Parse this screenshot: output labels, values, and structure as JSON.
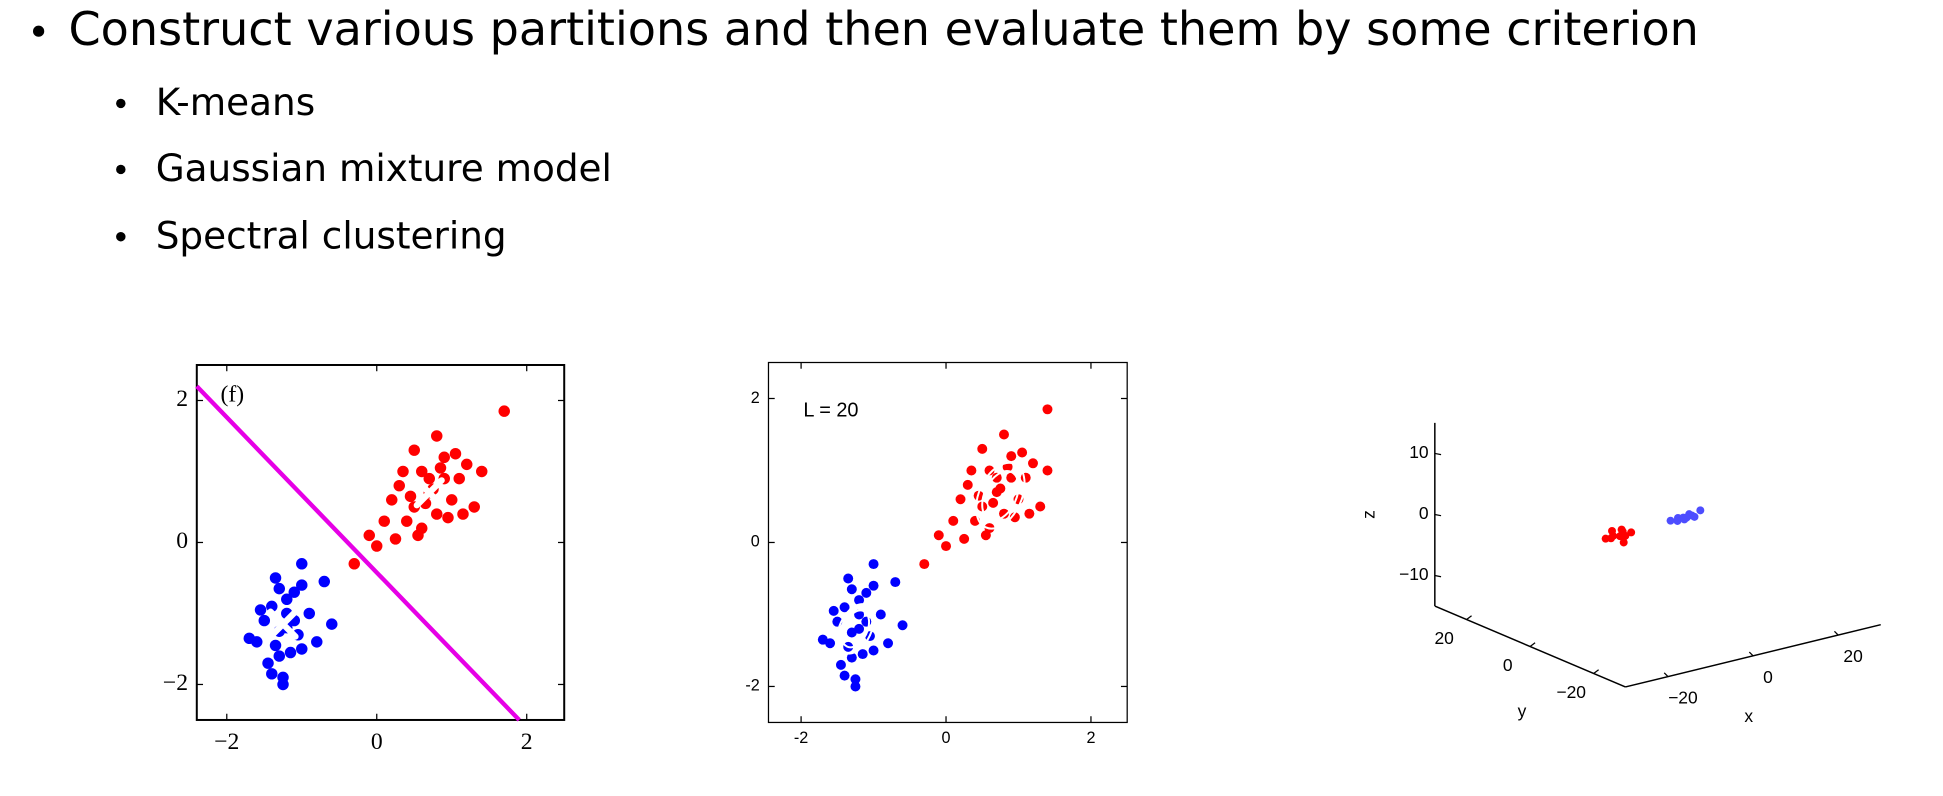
{
  "slide": {
    "bullet": "Construct various partitions and then evaluate them by some criterion",
    "sub_bullets": [
      "K-means",
      "Gaussian mixture model",
      "Spectral clustering"
    ]
  },
  "chart_data": [
    {
      "type": "scatter",
      "annotation": "(f)",
      "xlim": [
        -2.4,
        2.5
      ],
      "ylim": [
        -2.5,
        2.5
      ],
      "xticks": [
        {
          "value": -2,
          "label": "−2"
        },
        0,
        2
      ],
      "yticks": [
        {
          "value": -2,
          "label": "−2"
        },
        0,
        2
      ],
      "series": [
        {
          "color": "#ff0000",
          "x": [
            0.7,
            0.9,
            0.5,
            1.0,
            0.6,
            0.8,
            0.3,
            1.2,
            0.4,
            0.9,
            1.1,
            0.2,
            0.6,
            0.75,
            1.3,
            0.5,
            0.95,
            0.35,
            0.85,
            0.65,
            1.05,
            0.1,
            0.45,
            0.55,
            1.4,
            -0.1,
            0.8,
            1.15,
            0.25,
            0.7,
            -0.3,
            0.0,
            1.7
          ],
          "values": [
            0.7,
            0.9,
            0.5,
            0.6,
            1.0,
            0.4,
            0.8,
            1.1,
            0.3,
            1.2,
            0.9,
            0.6,
            0.2,
            0.75,
            0.5,
            1.3,
            0.35,
            1.0,
            1.05,
            0.55,
            1.25,
            0.3,
            0.65,
            0.1,
            1.0,
            0.1,
            1.5,
            0.4,
            0.05,
            0.9,
            -0.3,
            -0.05,
            1.85
          ]
        },
        {
          "color": "#0000ff",
          "x": [
            -1.2,
            -1.4,
            -1.0,
            -1.3,
            -1.5,
            -1.1,
            -1.25,
            -0.9,
            -1.6,
            -1.35,
            -1.05,
            -1.45,
            -1.2,
            -1.15,
            -1.3,
            -1.0,
            -1.55,
            -1.4,
            -0.8,
            -1.25,
            -1.1,
            -1.35,
            -0.6,
            -1.7,
            -1.0,
            -1.3,
            -0.7,
            -1.2
          ],
          "values": [
            -1.2,
            -0.9,
            -1.5,
            -1.6,
            -1.1,
            -0.7,
            -1.9,
            -1.0,
            -1.4,
            -0.5,
            -1.3,
            -1.7,
            -0.8,
            -1.55,
            -1.25,
            -0.6,
            -0.95,
            -1.85,
            -1.4,
            -2.0,
            -1.1,
            -1.45,
            -1.15,
            -1.35,
            -0.3,
            -0.65,
            -0.55,
            -1.0
          ]
        }
      ],
      "boundary": {
        "color": "#e600e6",
        "x": [
          -2.4,
          1.9
        ],
        "values": [
          2.2,
          -2.5
        ]
      },
      "centers": {
        "x": [
          0.7,
          -1.25
        ],
        "values": [
          0.7,
          -1.15
        ]
      }
    },
    {
      "type": "scatter",
      "annotation": "L = 20",
      "xlim": [
        -2.45,
        2.5
      ],
      "ylim": [
        -2.5,
        2.5
      ],
      "xticks": [
        -2,
        0,
        2
      ],
      "yticks": [
        -2,
        0,
        2
      ],
      "series": [
        {
          "color": "#ff0000",
          "x": [
            0.7,
            0.9,
            0.5,
            1.0,
            0.6,
            0.8,
            0.3,
            1.2,
            0.4,
            0.9,
            1.1,
            0.2,
            0.6,
            0.75,
            1.3,
            0.5,
            0.95,
            0.35,
            0.85,
            0.65,
            1.05,
            0.1,
            0.45,
            0.55,
            1.4,
            -0.1,
            0.8,
            1.15,
            0.25,
            0.7,
            -0.3,
            0.0,
            1.4
          ],
          "values": [
            0.7,
            0.9,
            0.5,
            0.6,
            1.0,
            0.4,
            0.8,
            1.1,
            0.3,
            1.2,
            0.9,
            0.6,
            0.2,
            0.75,
            0.5,
            1.3,
            0.35,
            1.0,
            1.05,
            0.55,
            1.25,
            0.3,
            0.65,
            0.1,
            1.0,
            0.1,
            1.5,
            0.4,
            0.05,
            0.9,
            -0.3,
            -0.05,
            1.85
          ]
        },
        {
          "color": "#0000ff",
          "x": [
            -1.2,
            -1.4,
            -1.0,
            -1.3,
            -1.5,
            -1.1,
            -1.25,
            -0.9,
            -1.6,
            -1.35,
            -1.05,
            -1.45,
            -1.2,
            -1.15,
            -1.3,
            -1.0,
            -1.55,
            -1.4,
            -0.8,
            -1.25,
            -1.1,
            -1.35,
            -0.6,
            -1.7,
            -1.0,
            -1.3,
            -0.7,
            -1.2
          ],
          "values": [
            -1.2,
            -0.9,
            -1.5,
            -1.6,
            -1.1,
            -0.7,
            -1.9,
            -1.0,
            -1.4,
            -0.5,
            -1.3,
            -1.7,
            -0.8,
            -1.55,
            -1.25,
            -0.6,
            -0.95,
            -1.85,
            -1.4,
            -2.0,
            -1.1,
            -1.45,
            -1.15,
            -1.35,
            -0.3,
            -0.65,
            -0.55,
            -1.0
          ]
        }
      ],
      "components": {
        "x": [
          0.75,
          -1.25
        ],
        "values": [
          0.65,
          -1.2
        ]
      }
    },
    {
      "type": "scatter3d",
      "xlabel": "x",
      "ylabel": "y",
      "zlabel": "z",
      "xlim": [
        -30,
        30
      ],
      "ylim": [
        -30,
        30
      ],
      "zlim": [
        -15,
        15
      ],
      "xticks": [
        {
          "value": -20,
          "label": "−20"
        },
        0,
        20
      ],
      "yticks": [
        {
          "value": -20,
          "label": "−20"
        },
        0,
        20
      ],
      "zticks": [
        {
          "value": -10,
          "label": "−10"
        },
        0,
        10
      ],
      "series": [
        {
          "color": "#ff0000",
          "x": [
            -13,
            -12,
            -11,
            -10,
            -9,
            -8,
            -7,
            -11.5,
            -9.5,
            -8.5
          ],
          "y": [
            -1,
            -2,
            0,
            -1.5,
            -1,
            -0.5,
            -1,
            -1,
            -2,
            0
          ],
          "values": [
            0,
            0.5,
            -0.5,
            0,
            0.5,
            -0.5,
            0,
            1,
            -1,
            0.5
          ]
        },
        {
          "color": "#4d4dff",
          "x": [
            3,
            4,
            5,
            6,
            7,
            8,
            9,
            10,
            5.5,
            7.5
          ],
          "y": [
            0,
            -1,
            0.5,
            0,
            -0.5,
            0,
            0.5,
            0,
            -1,
            1
          ],
          "values": [
            0,
            0.5,
            -0.5,
            0,
            0.5,
            0,
            -0.5,
            0.5,
            0,
            -0.5
          ]
        }
      ]
    }
  ]
}
